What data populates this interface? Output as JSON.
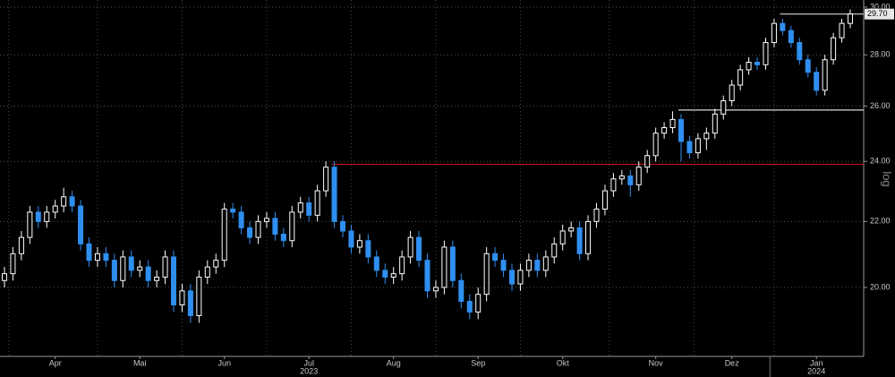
{
  "chart_data": {
    "type": "candlestick",
    "y_scale": "log",
    "ylim": [
      18.1,
      30.31
    ],
    "yticks": [
      {
        "value": 20,
        "label": "20.00"
      },
      {
        "value": 22,
        "label": "22.00"
      },
      {
        "value": 24,
        "label": "24.00"
      },
      {
        "value": 26,
        "label": "26.00"
      },
      {
        "value": 28,
        "label": "28.00"
      },
      {
        "value": 30,
        "label": "30.00"
      }
    ],
    "grid": true,
    "up_color": "#ffffff",
    "down_color": "#2f8ff0",
    "categories": [
      null,
      null,
      null,
      null,
      null,
      null,
      "Apr",
      null,
      null,
      null,
      null,
      null,
      null,
      null,
      null,
      null,
      "Mai",
      null,
      null,
      null,
      null,
      null,
      null,
      null,
      null,
      null,
      "Jun",
      null,
      null,
      null,
      null,
      null,
      null,
      null,
      null,
      null,
      "Jul",
      null,
      null,
      null,
      null,
      null,
      null,
      null,
      null,
      null,
      "Aug",
      null,
      null,
      null,
      null,
      null,
      null,
      null,
      null,
      null,
      "Sep",
      null,
      null,
      null,
      null,
      null,
      null,
      null,
      null,
      null,
      "Okt",
      null,
      null,
      null,
      null,
      null,
      null,
      null,
      null,
      null,
      null,
      "Nov",
      null,
      null,
      null,
      null,
      null,
      null,
      null,
      null,
      "Dez",
      null,
      null,
      null,
      null,
      null,
      null,
      null,
      null,
      null,
      "Jan",
      null,
      null,
      null,
      null
    ],
    "years": [
      null,
      null,
      null,
      null,
      null,
      null,
      null,
      null,
      null,
      null,
      null,
      null,
      null,
      null,
      null,
      null,
      null,
      null,
      null,
      null,
      null,
      null,
      null,
      null,
      null,
      null,
      null,
      null,
      null,
      null,
      null,
      null,
      null,
      null,
      null,
      null,
      "2023",
      null,
      null,
      null,
      null,
      null,
      null,
      null,
      null,
      null,
      null,
      null,
      null,
      null,
      null,
      null,
      null,
      null,
      null,
      null,
      null,
      null,
      null,
      null,
      null,
      null,
      null,
      null,
      null,
      null,
      null,
      null,
      null,
      null,
      null,
      null,
      null,
      null,
      null,
      null,
      null,
      null,
      null,
      null,
      null,
      null,
      null,
      null,
      null,
      null,
      null,
      null,
      null,
      null,
      null,
      null,
      null,
      null,
      null,
      null,
      "2024",
      null,
      null,
      null,
      null
    ],
    "open": [
      20.2,
      20.4,
      21.0,
      21.5,
      22.3,
      22.0,
      22.3,
      22.5,
      22.8,
      22.5,
      21.3,
      20.8,
      21.0,
      20.8,
      20.2,
      20.9,
      20.5,
      20.6,
      20.2,
      20.3,
      20.9,
      19.5,
      19.9,
      19.2,
      20.3,
      20.6,
      20.8,
      22.4,
      22.3,
      21.8,
      21.5,
      22.0,
      22.1,
      21.6,
      21.4,
      22.3,
      22.6,
      22.2,
      23.0,
      23.8,
      22.0,
      21.7,
      21.2,
      21.4,
      20.9,
      20.5,
      20.3,
      20.4,
      20.9,
      21.5,
      20.8,
      19.9,
      20.0,
      21.2,
      20.2,
      19.6,
      19.3,
      19.8,
      21.0,
      20.8,
      20.5,
      20.1,
      20.5,
      20.8,
      20.5,
      20.9,
      21.3,
      21.7,
      21.8,
      21.0,
      22.0,
      22.4,
      23.0,
      23.4,
      23.5,
      23.2,
      23.8,
      24.2,
      25.0,
      25.2,
      25.5,
      24.7,
      24.3,
      24.8,
      25.0,
      25.7,
      26.2,
      26.8,
      27.4,
      27.7,
      27.6,
      28.5,
      29.3,
      29.0,
      28.5,
      27.8,
      27.3,
      26.6,
      27.8,
      28.7,
      29.3
    ],
    "high": [
      20.6,
      21.2,
      21.7,
      22.5,
      22.5,
      22.5,
      22.7,
      23.1,
      23.0,
      22.7,
      21.5,
      21.2,
      21.2,
      21.0,
      21.1,
      21.1,
      20.8,
      20.8,
      20.5,
      21.1,
      21.1,
      20.1,
      20.1,
      20.5,
      20.8,
      21.0,
      22.6,
      22.6,
      22.5,
      22.0,
      22.2,
      22.3,
      22.3,
      21.8,
      22.5,
      22.8,
      22.8,
      23.2,
      24.0,
      24.0,
      22.2,
      21.9,
      21.6,
      21.6,
      21.1,
      20.7,
      20.6,
      21.1,
      21.7,
      21.7,
      21.0,
      20.2,
      21.4,
      21.4,
      20.4,
      19.8,
      20.0,
      21.2,
      21.2,
      21.0,
      20.7,
      20.7,
      21.0,
      21.0,
      21.1,
      21.5,
      21.9,
      22.0,
      22.0,
      22.2,
      22.6,
      23.2,
      23.6,
      23.7,
      23.7,
      24.0,
      24.4,
      25.2,
      25.4,
      25.8,
      25.7,
      24.9,
      25.0,
      25.2,
      25.9,
      26.4,
      27.0,
      27.6,
      27.9,
      27.9,
      28.7,
      29.5,
      29.5,
      29.2,
      28.7,
      28.0,
      27.5,
      28.0,
      28.9,
      29.5,
      29.9
    ],
    "low": [
      20.0,
      20.2,
      20.8,
      21.3,
      21.8,
      21.8,
      22.1,
      22.3,
      22.3,
      21.1,
      20.6,
      20.6,
      20.6,
      20.0,
      20.0,
      20.3,
      20.3,
      20.0,
      20.0,
      20.1,
      19.3,
      19.3,
      19.0,
      19.0,
      20.1,
      20.4,
      20.6,
      22.1,
      21.6,
      21.3,
      21.3,
      21.8,
      21.4,
      21.2,
      21.2,
      22.1,
      22.0,
      22.0,
      22.8,
      21.8,
      21.5,
      21.0,
      21.0,
      20.7,
      20.3,
      20.1,
      20.1,
      20.2,
      20.7,
      20.6,
      19.7,
      19.7,
      19.8,
      20.0,
      19.4,
      19.1,
      19.1,
      19.6,
      20.6,
      20.3,
      19.9,
      19.9,
      20.3,
      20.3,
      20.3,
      20.7,
      21.1,
      21.5,
      20.8,
      20.8,
      21.8,
      22.2,
      22.8,
      23.2,
      22.8,
      23.0,
      23.6,
      24.0,
      24.8,
      25.0,
      24.0,
      24.1,
      24.1,
      24.4,
      24.8,
      25.5,
      26.0,
      26.6,
      27.2,
      27.4,
      27.4,
      28.3,
      28.8,
      28.3,
      27.6,
      27.1,
      26.4,
      26.4,
      27.6,
      28.5,
      29.1
    ],
    "close": [
      20.4,
      21.0,
      21.5,
      22.3,
      22.0,
      22.3,
      22.5,
      22.8,
      22.5,
      21.3,
      20.8,
      21.0,
      20.8,
      20.2,
      20.9,
      20.5,
      20.6,
      20.2,
      20.3,
      20.9,
      19.5,
      19.9,
      19.2,
      20.3,
      20.6,
      20.8,
      22.4,
      22.3,
      21.8,
      21.5,
      22.0,
      22.1,
      21.6,
      21.4,
      22.3,
      22.6,
      22.2,
      23.0,
      23.8,
      22.0,
      21.7,
      21.2,
      21.4,
      20.9,
      20.5,
      20.3,
      20.4,
      20.9,
      21.5,
      20.8,
      19.9,
      20.0,
      21.2,
      20.2,
      19.6,
      19.3,
      19.8,
      21.0,
      20.8,
      20.5,
      20.1,
      20.5,
      20.8,
      20.5,
      20.9,
      21.3,
      21.7,
      21.8,
      21.0,
      22.0,
      22.4,
      23.0,
      23.4,
      23.5,
      23.2,
      23.8,
      24.2,
      25.0,
      25.2,
      25.5,
      24.7,
      24.3,
      24.8,
      25.0,
      25.7,
      26.2,
      26.8,
      27.4,
      27.7,
      27.6,
      28.5,
      29.3,
      29.0,
      28.5,
      27.8,
      27.3,
      26.6,
      27.8,
      28.7,
      29.3,
      29.7
    ],
    "reference_lines": [
      {
        "value": 23.9,
        "color": "#c0141c"
      },
      {
        "value": 25.85,
        "color": "#d8d8d8"
      },
      {
        "value": 29.7,
        "color": "#d8d8d8"
      }
    ],
    "last_label": {
      "value": 29.7,
      "label": "29.70"
    }
  }
}
